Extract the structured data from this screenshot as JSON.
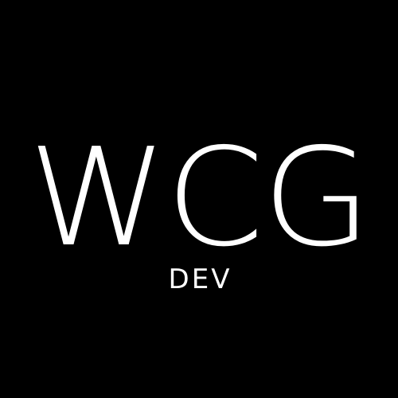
{
  "logo": {
    "wordmark": "WCG",
    "subtitle": "DEV",
    "colors": {
      "background": "#000000",
      "text": "#ffffff"
    }
  }
}
